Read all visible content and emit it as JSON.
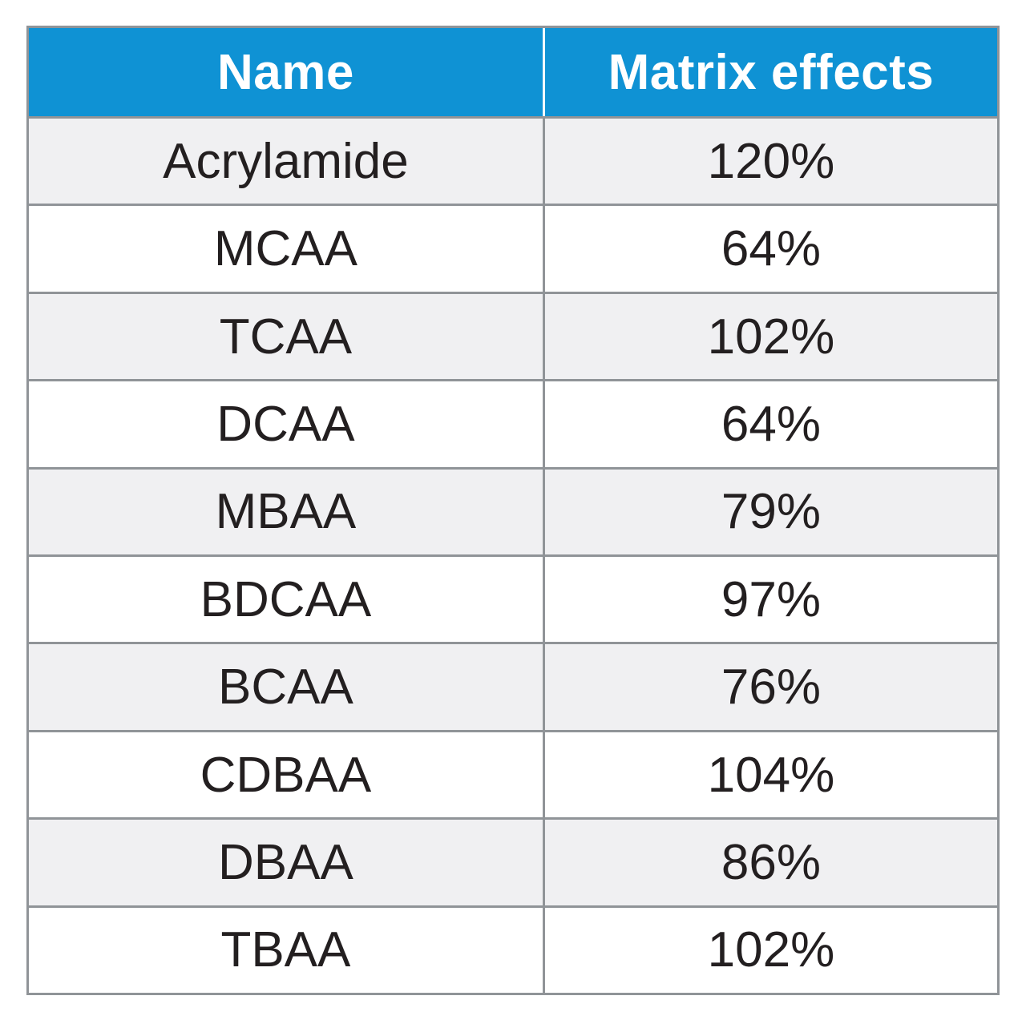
{
  "table": {
    "columns": [
      {
        "label": "Name"
      },
      {
        "label": "Matrix effects"
      }
    ],
    "rows": [
      {
        "name": "Acrylamide",
        "matrix_effect": "120%"
      },
      {
        "name": "MCAA",
        "matrix_effect": "64%"
      },
      {
        "name": "TCAA",
        "matrix_effect": "102%"
      },
      {
        "name": "DCAA",
        "matrix_effect": "64%"
      },
      {
        "name": "MBAA",
        "matrix_effect": "79%"
      },
      {
        "name": "BDCAA",
        "matrix_effect": "97%"
      },
      {
        "name": "BCAA",
        "matrix_effect": "76%"
      },
      {
        "name": "CDBAA",
        "matrix_effect": "104%"
      },
      {
        "name": "DBAA",
        "matrix_effect": "86%"
      },
      {
        "name": "TBAA",
        "matrix_effect": "102%"
      }
    ]
  },
  "chart_data": {
    "type": "table",
    "title": "",
    "columns": [
      "Name",
      "Matrix effects"
    ],
    "rows": [
      [
        "Acrylamide",
        "120%"
      ],
      [
        "MCAA",
        "64%"
      ],
      [
        "TCAA",
        "102%"
      ],
      [
        "DCAA",
        "64%"
      ],
      [
        "MBAA",
        "79%"
      ],
      [
        "BDCAA",
        "97%"
      ],
      [
        "BCAA",
        "76%"
      ],
      [
        "CDBAA",
        "104%"
      ],
      [
        "DBAA",
        "86%"
      ],
      [
        "TBAA",
        "102%"
      ]
    ]
  },
  "colors": {
    "header_bg": "#0f92d4",
    "header_text": "#ffffff",
    "row_stripe": "#f0f0f2",
    "row_white": "#ffffff",
    "grid_line": "#909498",
    "body_text": "#231f20"
  }
}
